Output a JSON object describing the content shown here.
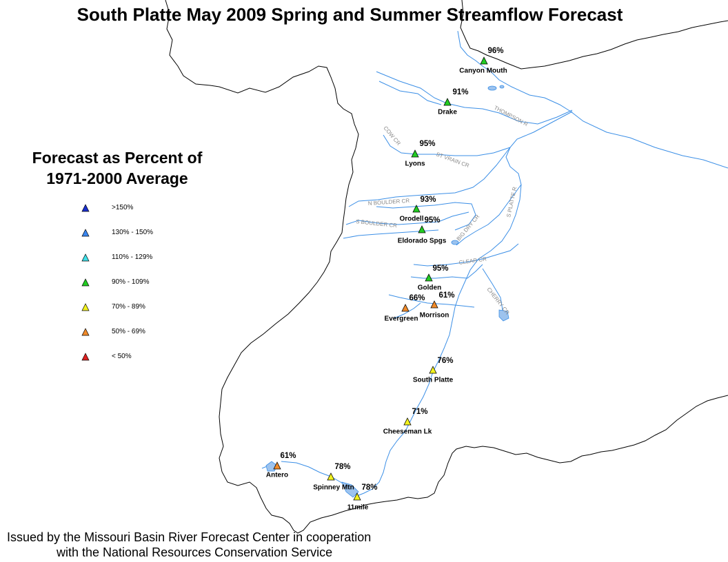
{
  "title": "South Platte May 2009 Spring and Summer Streamflow Forecast",
  "legend": {
    "title_line1": "Forecast as Percent of",
    "title_line2": "1971-2000 Average",
    "items": [
      {
        "label": ">150%",
        "color": "#1a2fcc"
      },
      {
        "label": "130% - 150%",
        "color": "#3a86f0"
      },
      {
        "label": "110% - 129%",
        "color": "#3fe0e8"
      },
      {
        "label": "90% - 109%",
        "color": "#22cc22"
      },
      {
        "label": "70% - 89%",
        "color": "#f2f21e"
      },
      {
        "label": "50% - 69%",
        "color": "#f08a2a"
      },
      {
        "label": "< 50%",
        "color": "#dd2020"
      }
    ]
  },
  "stations": [
    {
      "name": "Canyon Mouth",
      "percent": "96%",
      "color": "#22cc22"
    },
    {
      "name": "Drake",
      "percent": "91%",
      "color": "#22cc22"
    },
    {
      "name": "Lyons",
      "percent": "95%",
      "color": "#22cc22"
    },
    {
      "name": "Orodell",
      "percent": "93%",
      "color": "#22cc22"
    },
    {
      "name": "Eldorado Spgs",
      "percent": "95%",
      "color": "#22cc22"
    },
    {
      "name": "Golden",
      "percent": "95%",
      "color": "#22cc22"
    },
    {
      "name": "Evergreen",
      "percent": "66%",
      "color": "#f08a2a"
    },
    {
      "name": "Morrison",
      "percent": "61%",
      "color": "#f08a2a"
    },
    {
      "name": "South Platte",
      "percent": "76%",
      "color": "#f2f21e"
    },
    {
      "name": "Cheeseman Lk",
      "percent": "71%",
      "color": "#f2f21e"
    },
    {
      "name": "Antero",
      "percent": "61%",
      "color": "#f08a2a"
    },
    {
      "name": "Spinney Mtn",
      "percent": "78%",
      "color": "#f2f21e"
    },
    {
      "name": "11mile",
      "percent": "78%",
      "color": "#f2f21e"
    }
  ],
  "rivers": [
    "THOMPSON R",
    "COW CR",
    "ST VRAIN CR",
    "N BOULDER CR",
    "S BOULDER CR",
    "BIG DRY CR",
    "S PLATTE R",
    "CLEAR CR",
    "CHERRY CR"
  ],
  "footer": {
    "line1": "Issued by the Missouri Basin River Forecast Center in cooperation",
    "line2": "with the National Resources Conservation Service"
  },
  "colors": {
    "river": "#3a8ee6",
    "lake": "#9dc3ee",
    "boundary": "#000000"
  }
}
